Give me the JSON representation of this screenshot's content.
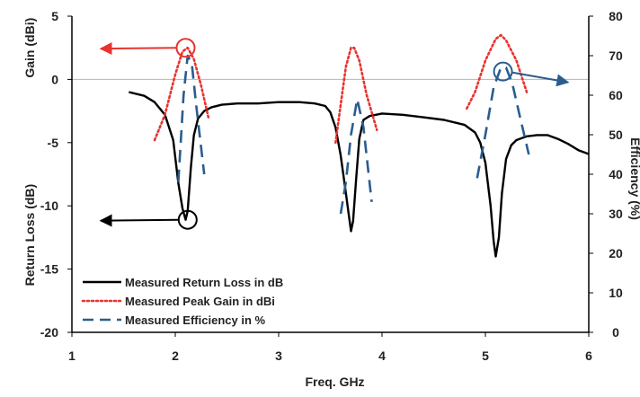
{
  "chart_data": {
    "type": "line",
    "title": "",
    "xlabel": "Freq. GHz",
    "ylabel_left_top": "Gain (dBi)",
    "ylabel_left_bottom": "Return Loss (dB)",
    "ylabel_right": "Efficiency (%)",
    "xlim": [
      1,
      6
    ],
    "ylim_left": [
      -20,
      5
    ],
    "ylim_right": [
      0,
      80
    ],
    "x_ticks": [
      "1",
      "2",
      "3",
      "4",
      "5",
      "6"
    ],
    "y_left_ticks": [
      "5",
      "0",
      "-5",
      "-10",
      "-15",
      "-20"
    ],
    "y_right_ticks": [
      "80",
      "70",
      "60",
      "50",
      "40",
      "30",
      "20",
      "10",
      "0"
    ],
    "legend_position": "bottom-left",
    "series": [
      {
        "name": "Measured Return Loss in dB",
        "axis": "left",
        "color": "#000000",
        "style": "solid",
        "x": [
          1.55,
          1.7,
          1.8,
          1.9,
          1.98,
          2.03,
          2.07,
          2.1,
          2.12,
          2.15,
          2.18,
          2.22,
          2.28,
          2.35,
          2.45,
          2.6,
          2.8,
          3.0,
          3.2,
          3.35,
          3.45,
          3.5,
          3.55,
          3.6,
          3.65,
          3.68,
          3.7,
          3.72,
          3.75,
          3.78,
          3.82,
          3.88,
          4.0,
          4.2,
          4.4,
          4.6,
          4.8,
          4.9,
          4.95,
          5.0,
          5.05,
          5.08,
          5.1,
          5.13,
          5.16,
          5.2,
          5.25,
          5.3,
          5.4,
          5.5,
          5.6,
          5.7,
          5.8,
          5.9,
          6.0
        ],
        "values": [
          -1.0,
          -1.3,
          -1.8,
          -2.8,
          -4.8,
          -8.2,
          -10.2,
          -11.1,
          -10.4,
          -7.0,
          -4.4,
          -3.1,
          -2.5,
          -2.2,
          -2.0,
          -1.9,
          -1.9,
          -1.8,
          -1.8,
          -1.9,
          -2.1,
          -2.6,
          -3.8,
          -6.0,
          -9.0,
          -10.8,
          -12.0,
          -11.2,
          -7.8,
          -4.7,
          -3.2,
          -2.9,
          -2.7,
          -2.8,
          -3.0,
          -3.2,
          -3.6,
          -4.2,
          -5.0,
          -6.6,
          -10.0,
          -12.8,
          -14.0,
          -12.5,
          -9.0,
          -6.3,
          -5.2,
          -4.8,
          -4.5,
          -4.4,
          -4.4,
          -4.7,
          -5.1,
          -5.6,
          -5.9
        ]
      },
      {
        "name": "Measured Peak Gain in dBi",
        "axis": "left",
        "color": "#e8332f",
        "style": "dotted",
        "x": [
          1.8,
          1.9,
          2.0,
          2.07,
          2.12,
          2.18,
          2.25,
          2.32,
          3.55,
          3.6,
          3.65,
          3.7,
          3.73,
          3.78,
          3.85,
          3.95,
          4.82,
          4.9,
          5.0,
          5.1,
          5.15,
          5.2,
          5.3,
          5.4
        ],
        "values": [
          -4.8,
          -2.8,
          0.4,
          2.2,
          2.5,
          1.6,
          -0.5,
          -3.0,
          -5.0,
          -2.0,
          1.0,
          2.5,
          2.5,
          1.5,
          -1.2,
          -4.0,
          -2.3,
          -1.0,
          1.5,
          3.2,
          3.5,
          3.1,
          1.5,
          -1.0
        ]
      },
      {
        "name": "Measured Efficiency in %",
        "axis": "right",
        "color": "#2a5d8f",
        "style": "dashed",
        "x": [
          2.03,
          2.08,
          2.12,
          2.16,
          2.2,
          2.28,
          3.6,
          3.65,
          3.7,
          3.76,
          3.82,
          3.9,
          4.92,
          5.0,
          5.08,
          5.15,
          5.2,
          5.26,
          5.33,
          5.42
        ],
        "values": [
          38,
          60,
          70,
          68,
          58,
          40,
          30,
          38,
          50,
          59,
          52,
          33,
          39,
          50,
          62,
          67,
          67,
          63,
          55,
          45
        ]
      }
    ],
    "annotations": [
      {
        "type": "circle-arrow",
        "target_series": "Measured Peak Gain in dBi",
        "point": [
          2.1,
          2.5
        ],
        "direction": "left",
        "color": "#e8332f"
      },
      {
        "type": "circle-arrow",
        "target_series": "Measured Return Loss in dB",
        "point": [
          2.12,
          -11.1
        ],
        "direction": "left",
        "color": "#000000"
      },
      {
        "type": "circle-arrow",
        "target_series": "Measured Efficiency in %",
        "point": [
          5.17,
          66
        ],
        "direction": "right",
        "color": "#2a5d8f"
      }
    ]
  }
}
